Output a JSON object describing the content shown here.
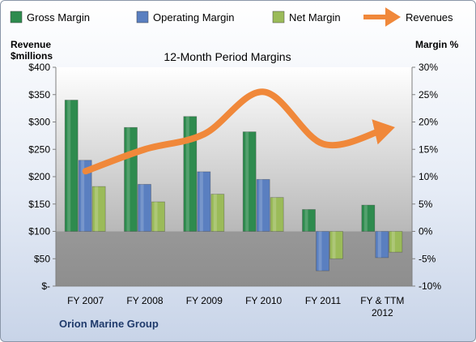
{
  "chart_data": {
    "type": "bar",
    "title": "12-Month Period Margins",
    "company": "Orion Marine Group",
    "left_axis": {
      "label_line1": "Revenue",
      "label_line2": "$millions",
      "min": 0,
      "max": 400,
      "step": 50,
      "ticks": [
        "$-",
        "$50",
        "$100",
        "$150",
        "$200",
        "$250",
        "$300",
        "$350",
        "$400"
      ]
    },
    "right_axis": {
      "label": "Margin %",
      "min": -10,
      "max": 30,
      "step": 5,
      "ticks": [
        "-10%",
        "-5%",
        "0%",
        "5%",
        "10%",
        "15%",
        "20%",
        "25%",
        "30%"
      ]
    },
    "categories": [
      [
        "FY 2007"
      ],
      [
        "FY 2008"
      ],
      [
        "FY 2009"
      ],
      [
        "FY 2010"
      ],
      [
        "FY 2011"
      ],
      [
        "FY & TTM",
        "2012"
      ]
    ],
    "series": [
      {
        "name": "Gross Margin",
        "axis": "right",
        "color": "#2e8b4e",
        "values": [
          24,
          19,
          21,
          18.2,
          4,
          4.8
        ]
      },
      {
        "name": "Operating Margin",
        "axis": "right",
        "color": "#5a7fc0",
        "values": [
          13,
          8.6,
          10.9,
          9.5,
          -7.2,
          -4.8
        ]
      },
      {
        "name": "Net Margin",
        "axis": "right",
        "color": "#9bbb59",
        "values": [
          8.2,
          5.4,
          6.8,
          6.2,
          -5,
          -3.8
        ]
      },
      {
        "name": "Revenues",
        "axis": "left",
        "type": "line",
        "color": "#f0883a",
        "values": [
          210,
          250,
          278,
          355,
          260,
          285
        ]
      }
    ],
    "legend_position": "top",
    "grid": false
  }
}
